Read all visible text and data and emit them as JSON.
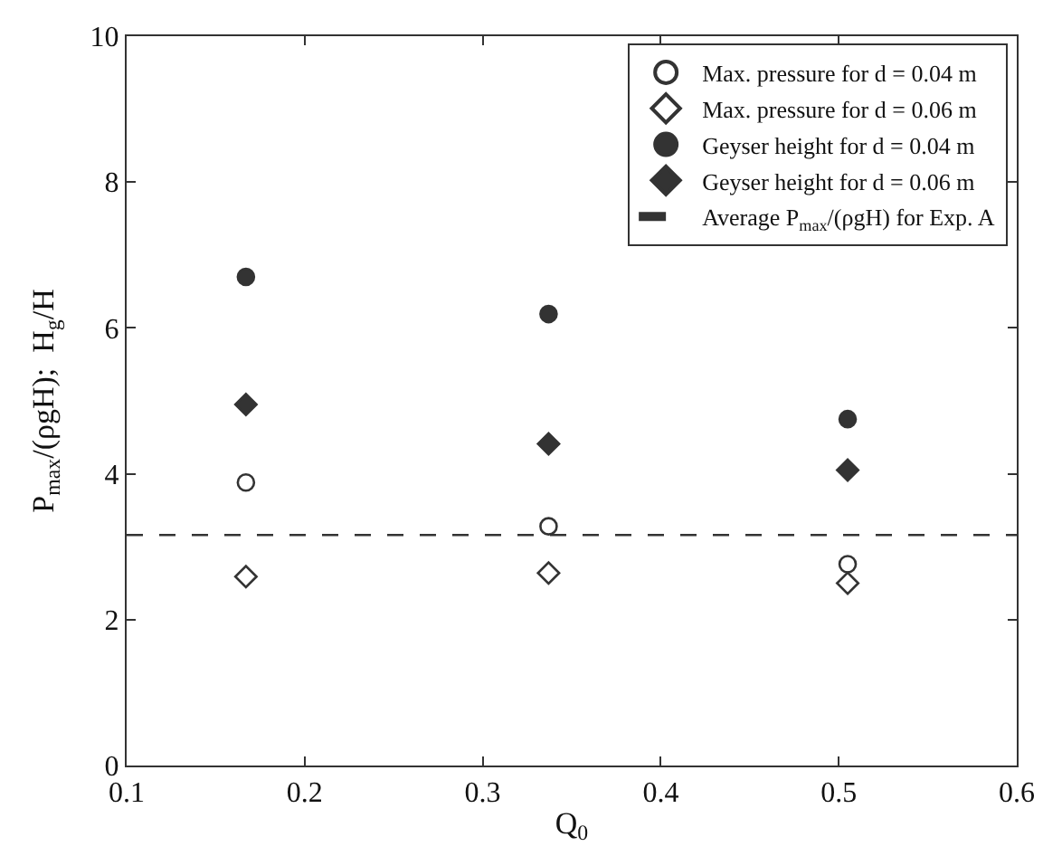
{
  "chart_data": {
    "type": "scatter",
    "xlabel": "Q$_{0}$",
    "ylabel": "P$_{max}$/(ρgH);  H$_{g}$/H",
    "x": [
      0.167,
      0.337,
      0.505
    ],
    "series": [
      {
        "name": "Max. pressure for d = 0.04 m",
        "color": "#333333",
        "marker": "circle-open",
        "values": [
          3.88,
          3.28,
          2.76
        ]
      },
      {
        "name": "Max. pressure for d = 0.06 m",
        "color": "#333333",
        "marker": "diamond-open",
        "values": [
          2.59,
          2.64,
          2.5
        ]
      },
      {
        "name": "Geyser height for d = 0.04 m",
        "color": "#333333",
        "marker": "circle",
        "values": [
          6.7,
          6.19,
          4.75
        ]
      },
      {
        "name": "Geyser height for d = 0.06 m",
        "color": "#333333",
        "marker": "diamond",
        "values": [
          4.95,
          4.41,
          4.05
        ]
      }
    ],
    "ref_lines": [
      {
        "axis": "y",
        "value": 3.16,
        "label": "Average P$_{max}$/(ρgH) for Exp. A",
        "color": "#333333",
        "line_style": "dashed"
      }
    ],
    "xlim": [
      0.1,
      0.6
    ],
    "xticks": [
      0.1,
      0.2,
      0.3,
      0.4,
      0.5,
      0.6
    ],
    "ylim": [
      0,
      10
    ],
    "yticks": [
      0,
      2,
      4,
      6,
      8,
      10
    ],
    "legend": "top right"
  }
}
